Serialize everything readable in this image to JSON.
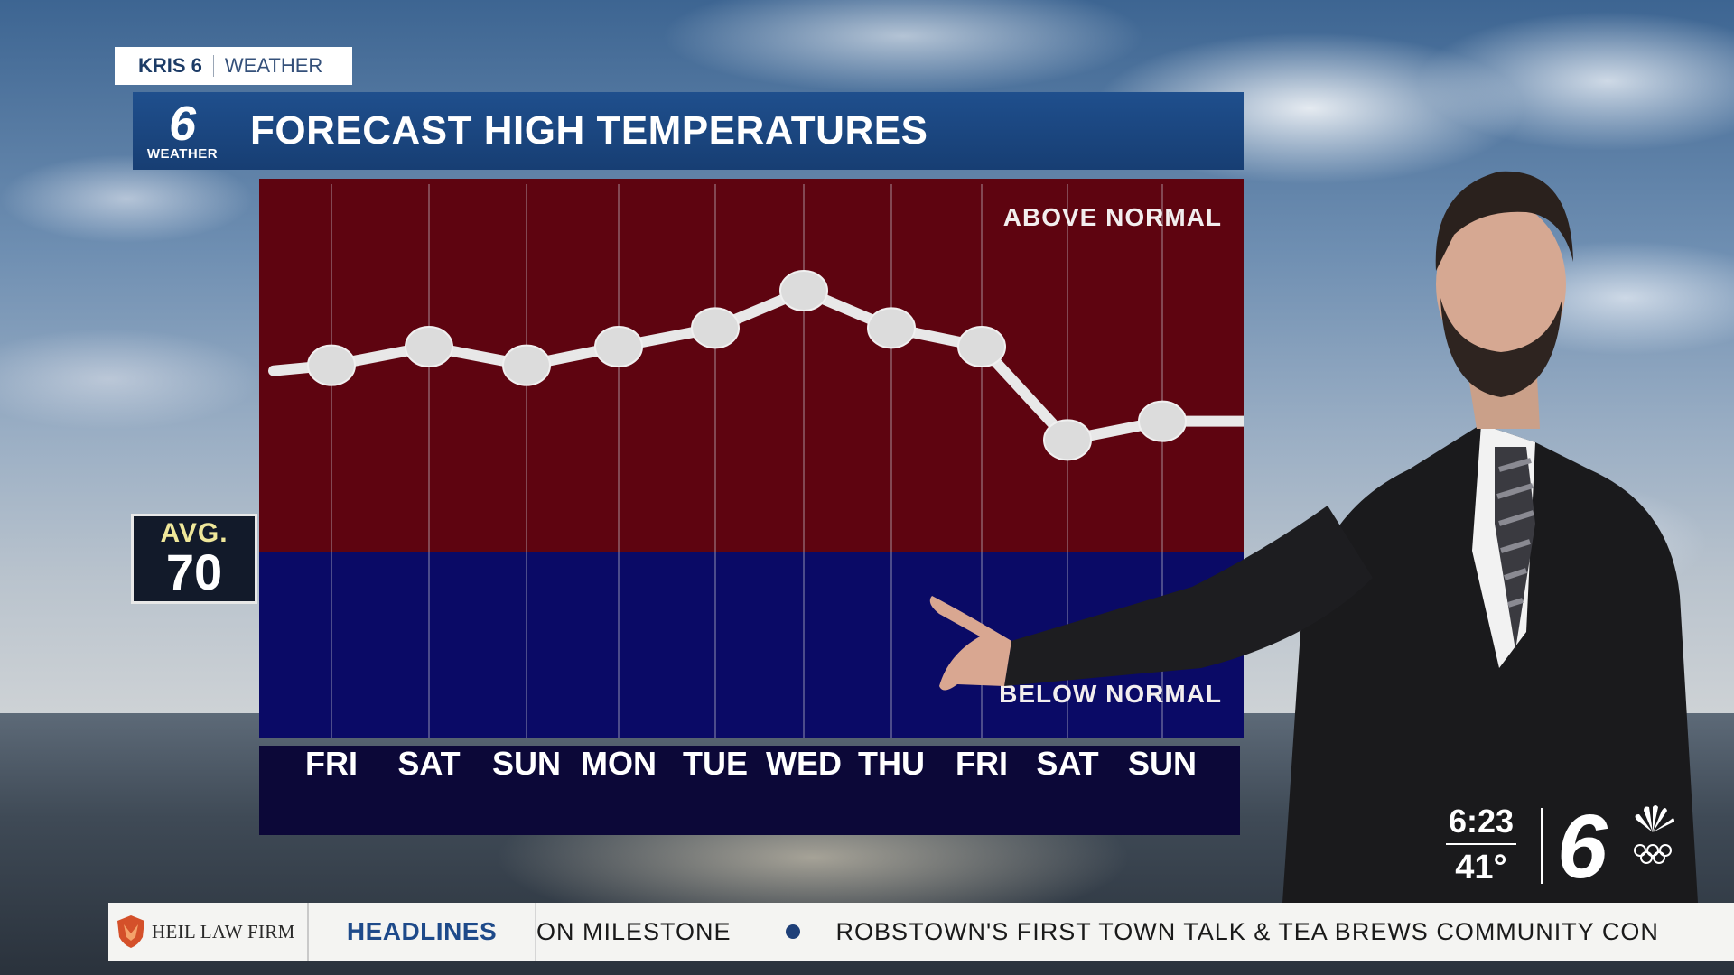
{
  "brand": {
    "station": "KRIS 6",
    "section": "WEATHER"
  },
  "title_bar": {
    "logo_number": "6",
    "logo_caption": "WEATHER",
    "title": "FORECAST HIGH TEMPERATURES"
  },
  "average": {
    "label": "AVG.",
    "value": "70"
  },
  "chart_data": {
    "type": "line",
    "title": "FORECAST HIGH TEMPERATURES",
    "categories": [
      "FRI",
      "SAT",
      "SUN",
      "MON",
      "TUE",
      "WED",
      "THU",
      "FRI",
      "SAT",
      "SUN"
    ],
    "values": [
      80,
      81,
      80,
      81,
      82,
      84,
      82,
      81,
      76,
      77
    ],
    "baseline": 70,
    "ylim": [
      60,
      90
    ],
    "zones": {
      "above_label": "ABOVE NORMAL",
      "below_label": "BELOW NORMAL",
      "above_color": "#5e0410",
      "below_color": "#0a0a66"
    },
    "line_color": "#e8e8e8",
    "grid": true
  },
  "bug": {
    "time": "6:23",
    "temp": "41°",
    "logo": "6"
  },
  "ticker": {
    "sponsor": "HEIL LAW FIRM",
    "label": "HEADLINES",
    "items": [
      "ON MILESTONE",
      "ROBSTOWN'S FIRST TOWN TALK & TEA BREWS COMMUNITY CON"
    ]
  },
  "colors": {
    "title_bar": "#1f4f8d",
    "ticker_label": "#1e4a8a",
    "avg_label": "#efe79a"
  }
}
